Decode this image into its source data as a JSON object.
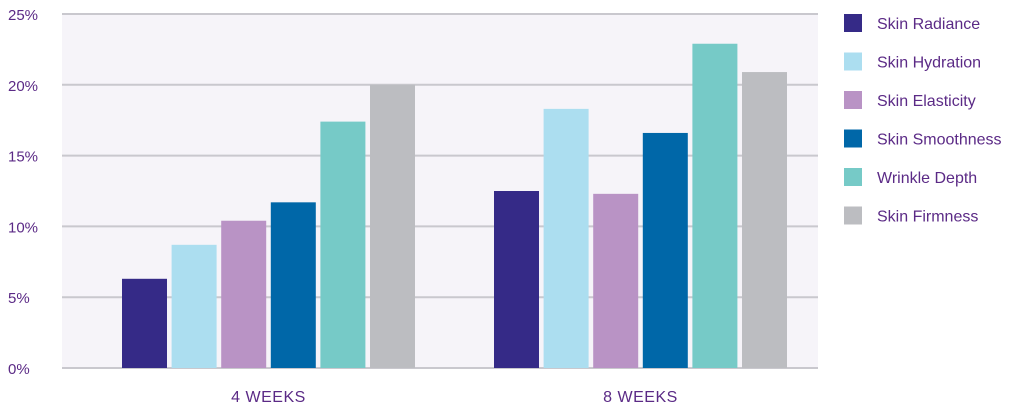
{
  "chart_data": {
    "type": "bar",
    "title": "",
    "xlabel": "",
    "ylabel": "",
    "categories": [
      "4 WEEKS",
      "8 WEEKS"
    ],
    "yticks": [
      "0%",
      "5%",
      "10%",
      "15%",
      "20%",
      "25%"
    ],
    "ylim": [
      0,
      25
    ],
    "grid": true,
    "legend_position": "right",
    "series": [
      {
        "name": "Skin Radiance",
        "color": "#352a87",
        "values": [
          6.3,
          12.5
        ]
      },
      {
        "name": "Skin Hydration",
        "color": "#acdef0",
        "values": [
          8.7,
          18.3
        ]
      },
      {
        "name": "Skin Elasticity",
        "color": "#b993c5",
        "values": [
          10.4,
          12.3
        ]
      },
      {
        "name": "Skin Smoothness",
        "color": "#0067a8",
        "values": [
          11.7,
          16.6
        ]
      },
      {
        "name": "Wrinkle Depth",
        "color": "#76cac7",
        "values": [
          17.4,
          22.9
        ]
      },
      {
        "name": "Skin Firmness",
        "color": "#bcbdc1",
        "values": [
          20.0,
          20.9
        ]
      }
    ],
    "colors": {
      "plot_background": "#f6f4f9",
      "gridline": "#c9c8ce",
      "text": "#5b2a86"
    }
  }
}
